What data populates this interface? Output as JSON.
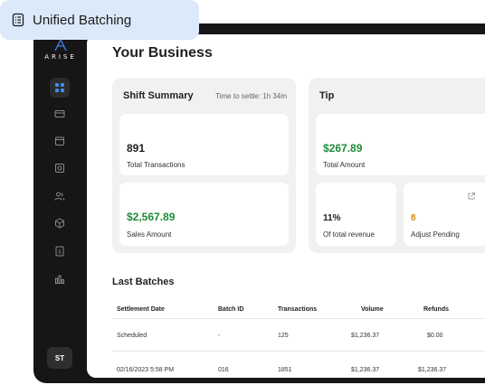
{
  "chip": {
    "label": "Unified Batching",
    "icon": "list-icon"
  },
  "brand": {
    "logo_text": "ARISE"
  },
  "sidebar": {
    "items": [
      {
        "icon": "grid-icon",
        "active": true
      },
      {
        "icon": "card-icon"
      },
      {
        "icon": "calendar-icon"
      },
      {
        "icon": "terminal-icon"
      },
      {
        "icon": "users-icon"
      },
      {
        "icon": "box-icon"
      },
      {
        "icon": "dollar-icon"
      },
      {
        "icon": "chart-icon"
      }
    ],
    "avatar": "ST"
  },
  "page": {
    "title": "Your Business"
  },
  "shift_summary": {
    "title": "Shift Summary",
    "time_to_settle": "Time to settle: 1h 34m",
    "total_transactions": {
      "value": "891",
      "label": "Total Transactions"
    },
    "sales_amount": {
      "value": "$2,567.89",
      "label": "Sales Amount"
    }
  },
  "tip": {
    "title": "Tip",
    "total_amount": {
      "value": "$267.89",
      "label": "Total Amount"
    },
    "pct_revenue": {
      "value": "11%",
      "label": "Of total revenue"
    },
    "adjust_pending": {
      "value": "8",
      "label": "Adjust Pending",
      "icon": "external-link-icon"
    }
  },
  "last_batches": {
    "title": "Last Batches",
    "columns": [
      "Settlement Date",
      "Batch ID",
      "Transactions",
      "Volume",
      "Refunds"
    ],
    "rows": [
      [
        "Scheduled",
        "-",
        "125",
        "$1,236.37",
        "$0.00"
      ],
      [
        "02/16/2023 5:58 PM",
        "016",
        "1851",
        "$1,236.37",
        "$1,236.37"
      ]
    ]
  },
  "colors": {
    "accent_green": "#1f8a3b",
    "accent_orange": "#d08a10",
    "chip_bg": "#dbe9fb",
    "frame_bg": "#161616"
  }
}
